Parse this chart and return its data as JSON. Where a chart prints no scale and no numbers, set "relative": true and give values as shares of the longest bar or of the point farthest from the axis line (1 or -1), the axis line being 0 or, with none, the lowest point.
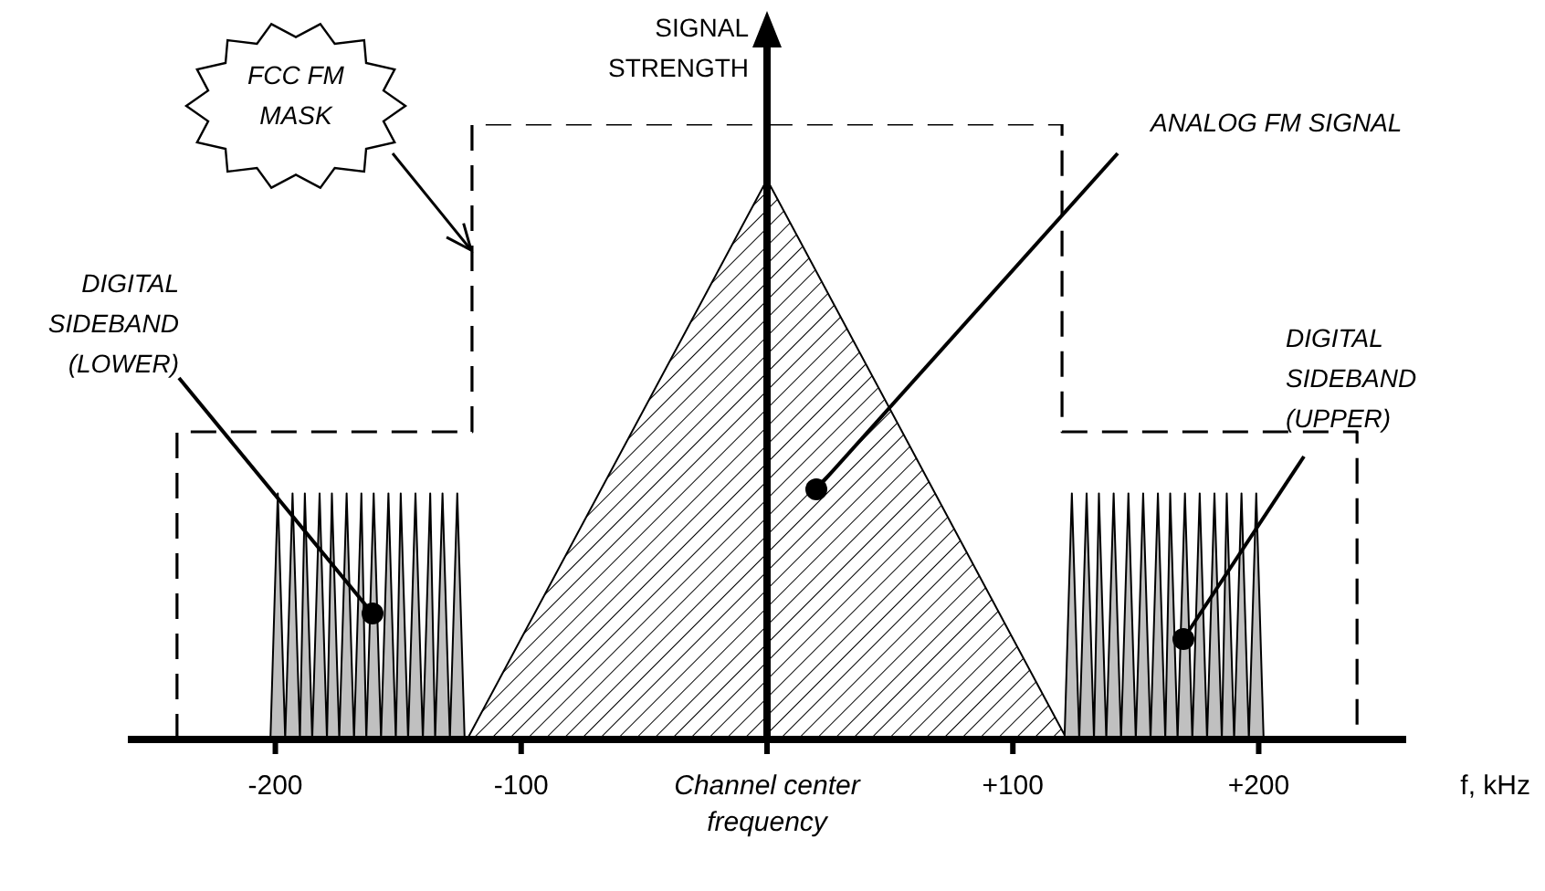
{
  "chart_data": {
    "type": "area",
    "relative": true,
    "xlabel": "f, kHz",
    "ylabel": "SIGNAL STRENGTH",
    "xlim": [
      -260,
      260
    ],
    "xticks": [
      -200,
      {
        "value": -100,
        "label": "-100"
      },
      {
        "value": 0,
        "label": "Channel center frequency"
      },
      {
        "value": 100,
        "label": "+100"
      },
      {
        "value": 200,
        "label": "+200"
      }
    ],
    "tick_labels": "x",
    "marker": "none",
    "series": [
      {
        "type": "line",
        "line_style": "dashed",
        "color": "#000000",
        "x": [
          -240,
          -240,
          -120,
          -120,
          120,
          120,
          240,
          240
        ],
        "values": [
          0,
          0.5,
          0.5,
          1,
          1,
          0.5,
          0.5,
          0
        ]
      },
      {
        "type": "area",
        "color": "#000000",
        "x": [
          -122,
          0,
          122
        ],
        "values": [
          0,
          0.91,
          0
        ]
      },
      {
        "type": "area",
        "color": "#c0c0c0",
        "x": [
          -202,
          -199,
          -196,
          -193,
          -190,
          -188,
          -185,
          -182,
          -179,
          -177,
          -174,
          -171,
          -168,
          -165,
          -163,
          -160,
          -157,
          -154,
          -151,
          -149,
          -146,
          -143,
          -140,
          -137,
          -135,
          -132,
          -129,
          -126,
          -123
        ],
        "values": [
          0,
          0.4,
          0,
          0.4,
          0,
          0.4,
          0,
          0.4,
          0,
          0.4,
          0,
          0.4,
          0,
          0.4,
          0,
          0.4,
          0,
          0.4,
          0,
          0.4,
          0,
          0.4,
          0,
          0.4,
          0,
          0.4,
          0,
          0.4,
          0
        ]
      },
      {
        "type": "area",
        "color": "#c0c0c0",
        "x": [
          121,
          124,
          127,
          130,
          133,
          135,
          138,
          141,
          144,
          147,
          150,
          153,
          156,
          159,
          162,
          164,
          167,
          170,
          173,
          176,
          179,
          182,
          185,
          187,
          190,
          193,
          196,
          199,
          202
        ],
        "values": [
          0,
          0.4,
          0,
          0.4,
          0,
          0.4,
          0,
          0.4,
          0,
          0.4,
          0,
          0.4,
          0,
          0.4,
          0,
          0.4,
          0,
          0.4,
          0,
          0.4,
          0,
          0.4,
          0,
          0.4,
          0,
          0.4,
          0,
          0.4,
          0
        ]
      }
    ],
    "annotations": [
      "FCC FM MASK",
      "ANALOG FM SIGNAL",
      "DIGITAL SIDEBAND (LOWER)",
      "DIGITAL SIDEBAND (UPPER)"
    ]
  }
}
